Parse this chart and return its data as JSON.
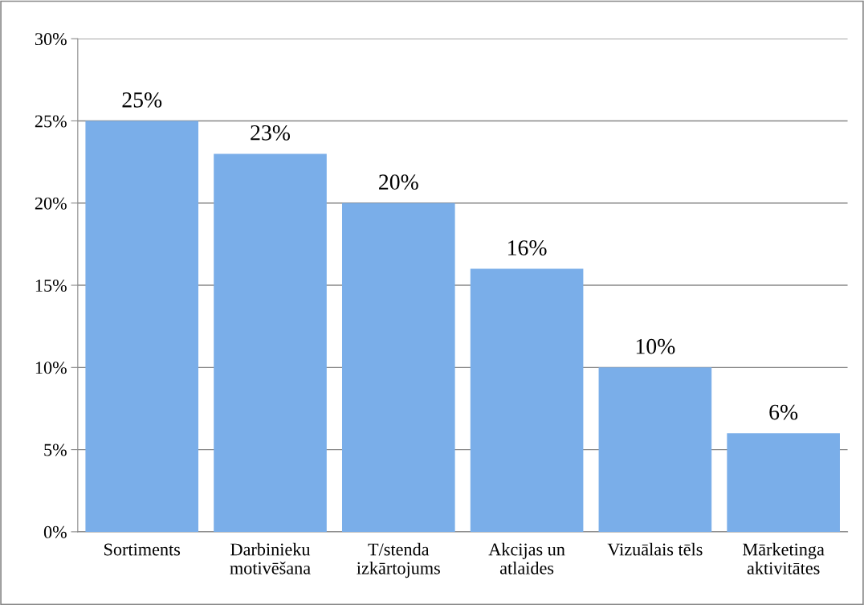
{
  "chart_data": {
    "type": "bar",
    "categories": [
      "Sortiments",
      "Darbinieku\nmotivēšana",
      "T/stenda\nizkārtojums",
      "Akcijas un\natlaides",
      "Vizuālais tēls",
      "Mārketinga\naktivitātes"
    ],
    "values": [
      25,
      23,
      20,
      16,
      10,
      6
    ],
    "value_labels": [
      "25%",
      "23%",
      "20%",
      "16%",
      "10%",
      "6%"
    ],
    "color": "#7aaee9",
    "ylim": [
      0,
      30
    ],
    "yticks": [
      {
        "value": 0,
        "label": "0%"
      },
      {
        "value": 5,
        "label": "5%"
      },
      {
        "value": 10,
        "label": "10%"
      },
      {
        "value": 15,
        "label": "15%"
      },
      {
        "value": 20,
        "label": "20%"
      },
      {
        "value": 25,
        "label": "25%"
      },
      {
        "value": 30,
        "label": "30%"
      }
    ],
    "grid": "y"
  }
}
